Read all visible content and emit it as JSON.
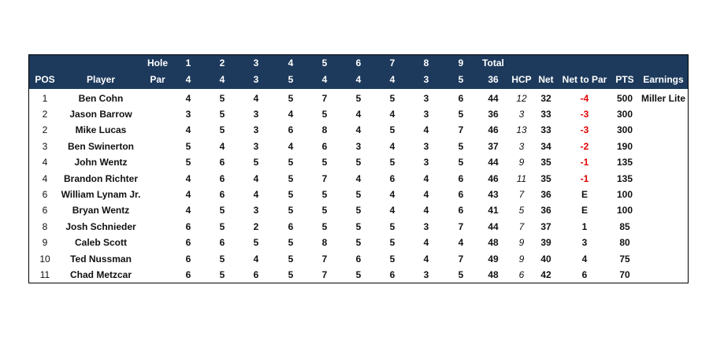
{
  "table": {
    "header": {
      "hole_label": "Hole",
      "holes": [
        1,
        2,
        3,
        4,
        5,
        6,
        7,
        8,
        9
      ],
      "total_label": "Total",
      "pos": "POS",
      "player": "Player",
      "par_label": "Par",
      "pars": [
        4,
        4,
        3,
        5,
        4,
        4,
        4,
        3,
        5
      ],
      "total_par": 36,
      "hcp": "HCP",
      "net": "Net",
      "net_to_par": "Net to Par",
      "pts": "PTS",
      "earnings": "Earnings"
    },
    "rows": [
      {
        "pos": 1,
        "player": "Ben Cohn",
        "scores": [
          4,
          5,
          4,
          5,
          7,
          5,
          5,
          3,
          6
        ],
        "total": 44,
        "hcp": 12,
        "net": 32,
        "net_to_par": -4,
        "pts": 500,
        "earnings": "Miller Lite"
      },
      {
        "pos": 2,
        "player": "Jason Barrow",
        "scores": [
          3,
          5,
          3,
          4,
          5,
          4,
          4,
          3,
          5
        ],
        "total": 36,
        "hcp": 3,
        "net": 33,
        "net_to_par": -3,
        "pts": 300
      },
      {
        "pos": 2,
        "player": "Mike Lucas",
        "scores": [
          4,
          5,
          3,
          6,
          8,
          4,
          5,
          4,
          7
        ],
        "total": 46,
        "hcp": 13,
        "net": 33,
        "net_to_par": -3,
        "pts": 300
      },
      {
        "pos": 3,
        "player": "Ben Swinerton",
        "scores": [
          5,
          4,
          3,
          4,
          6,
          3,
          4,
          3,
          5
        ],
        "total": 37,
        "hcp": 3,
        "net": 34,
        "net_to_par": -2,
        "pts": 190
      },
      {
        "pos": 4,
        "player": "John Wentz",
        "scores": [
          5,
          6,
          5,
          5,
          5,
          5,
          5,
          3,
          5
        ],
        "total": 44,
        "hcp": 9,
        "net": 35,
        "net_to_par": -1,
        "pts": 135
      },
      {
        "pos": 4,
        "player": "Brandon Richter",
        "scores": [
          4,
          6,
          4,
          5,
          7,
          4,
          6,
          4,
          6
        ],
        "total": 46,
        "hcp": 11,
        "net": 35,
        "net_to_par": -1,
        "pts": 135
      },
      {
        "pos": 6,
        "player": "William Lynam Jr.",
        "scores": [
          4,
          6,
          4,
          5,
          5,
          5,
          4,
          4,
          6
        ],
        "total": 43,
        "hcp": 7,
        "net": 36,
        "net_to_par": "E",
        "pts": 100
      },
      {
        "pos": 6,
        "player": "Bryan Wentz",
        "scores": [
          4,
          5,
          3,
          5,
          5,
          5,
          4,
          4,
          6
        ],
        "total": 41,
        "hcp": 5,
        "net": 36,
        "net_to_par": "E",
        "pts": 100
      },
      {
        "pos": 8,
        "player": "Josh Schnieder",
        "scores": [
          6,
          5,
          2,
          6,
          5,
          5,
          5,
          3,
          7
        ],
        "total": 44,
        "hcp": 7,
        "net": 37,
        "net_to_par": 1,
        "pts": 85
      },
      {
        "pos": 9,
        "player": "Caleb Scott",
        "scores": [
          6,
          6,
          5,
          5,
          8,
          5,
          5,
          4,
          4
        ],
        "total": 48,
        "hcp": 9,
        "net": 39,
        "net_to_par": 3,
        "pts": 80
      },
      {
        "pos": 10,
        "player": "Ted Nussman",
        "scores": [
          6,
          5,
          4,
          5,
          7,
          6,
          5,
          4,
          7
        ],
        "total": 49,
        "hcp": 9,
        "net": 40,
        "net_to_par": 4,
        "pts": 75
      },
      {
        "pos": 11,
        "player": "Chad Metzcar",
        "scores": [
          6,
          5,
          6,
          5,
          7,
          5,
          6,
          3,
          5
        ],
        "total": 48,
        "hcp": 6,
        "net": 42,
        "net_to_par": 6,
        "pts": 70
      }
    ]
  }
}
